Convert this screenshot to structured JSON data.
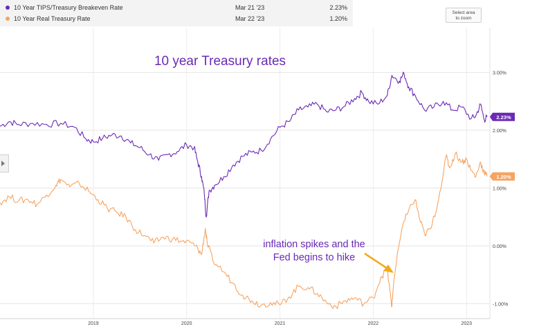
{
  "legend": [
    {
      "name": "10 Year TIPS/Treasury Breakeven Rate",
      "date": "Mar 21 '23",
      "value": "2.23%",
      "color": "#6a2ab5"
    },
    {
      "name": "10 Year Real Treasury Rate",
      "date": "Mar 22 '23",
      "value": "1.20%",
      "color": "#f5a462"
    }
  ],
  "zoom_button": {
    "line1": "Select area",
    "line2": "to zoom"
  },
  "side_tab": {
    "icon": "caret-right-icon"
  },
  "chart_data": {
    "type": "line",
    "title": "10 year Treasury rates",
    "ylim": [
      -1.15,
      3.4
    ],
    "xlim": [
      2018.0,
      2023.25
    ],
    "y_ticks": [
      {
        "value": 3,
        "label": "3.00%"
      },
      {
        "value": 2,
        "label": "2.00%"
      },
      {
        "value": 1,
        "label": "1.00%"
      },
      {
        "value": 0,
        "label": "0.00%"
      },
      {
        "value": -1,
        "label": "-1.00%"
      }
    ],
    "x_ticks": [
      {
        "value": 2019,
        "label": "2019"
      },
      {
        "value": 2020,
        "label": "2020"
      },
      {
        "value": 2021,
        "label": "2021"
      },
      {
        "value": 2022,
        "label": "2022"
      },
      {
        "value": 2023,
        "label": "2023"
      }
    ],
    "grid": true,
    "series": [
      {
        "name": "10 Year TIPS/Treasury Breakeven Rate",
        "color": "#6a2ab5",
        "end_label": "2.23%",
        "points": [
          [
            2018.0,
            2.07
          ],
          [
            2018.1,
            2.15
          ],
          [
            2018.2,
            2.1
          ],
          [
            2018.35,
            2.12
          ],
          [
            2018.5,
            2.1
          ],
          [
            2018.65,
            2.12
          ],
          [
            2018.8,
            2.05
          ],
          [
            2018.92,
            1.85
          ],
          [
            2019.0,
            1.8
          ],
          [
            2019.1,
            1.86
          ],
          [
            2019.2,
            1.92
          ],
          [
            2019.3,
            1.9
          ],
          [
            2019.4,
            1.78
          ],
          [
            2019.5,
            1.7
          ],
          [
            2019.6,
            1.58
          ],
          [
            2019.7,
            1.48
          ],
          [
            2019.8,
            1.58
          ],
          [
            2019.9,
            1.63
          ],
          [
            2020.0,
            1.75
          ],
          [
            2020.08,
            1.7
          ],
          [
            2020.12,
            1.45
          ],
          [
            2020.16,
            1.2
          ],
          [
            2020.19,
            0.9
          ],
          [
            2020.21,
            0.5
          ],
          [
            2020.24,
            0.95
          ],
          [
            2020.3,
            1.05
          ],
          [
            2020.4,
            1.2
          ],
          [
            2020.5,
            1.4
          ],
          [
            2020.6,
            1.55
          ],
          [
            2020.7,
            1.62
          ],
          [
            2020.8,
            1.65
          ],
          [
            2020.9,
            1.85
          ],
          [
            2021.0,
            2.05
          ],
          [
            2021.1,
            2.15
          ],
          [
            2021.2,
            2.35
          ],
          [
            2021.3,
            2.4
          ],
          [
            2021.4,
            2.45
          ],
          [
            2021.5,
            2.32
          ],
          [
            2021.6,
            2.35
          ],
          [
            2021.7,
            2.42
          ],
          [
            2021.8,
            2.55
          ],
          [
            2021.88,
            2.65
          ],
          [
            2021.95,
            2.5
          ],
          [
            2022.05,
            2.45
          ],
          [
            2022.15,
            2.6
          ],
          [
            2022.2,
            2.95
          ],
          [
            2022.28,
            2.85
          ],
          [
            2022.33,
            2.98
          ],
          [
            2022.38,
            2.75
          ],
          [
            2022.45,
            2.6
          ],
          [
            2022.55,
            2.35
          ],
          [
            2022.65,
            2.4
          ],
          [
            2022.75,
            2.5
          ],
          [
            2022.85,
            2.35
          ],
          [
            2022.95,
            2.4
          ],
          [
            2023.05,
            2.2
          ],
          [
            2023.1,
            2.25
          ],
          [
            2023.15,
            2.45
          ],
          [
            2023.19,
            2.18
          ],
          [
            2023.22,
            2.23
          ]
        ]
      },
      {
        "name": "10 Year Real Treasury Rate",
        "color": "#f5a462",
        "end_label": "1.20%",
        "points": [
          [
            2018.0,
            0.75
          ],
          [
            2018.1,
            0.85
          ],
          [
            2018.2,
            0.78
          ],
          [
            2018.3,
            0.8
          ],
          [
            2018.4,
            0.72
          ],
          [
            2018.5,
            0.88
          ],
          [
            2018.6,
            1.05
          ],
          [
            2018.65,
            1.15
          ],
          [
            2018.75,
            1.02
          ],
          [
            2018.85,
            1.08
          ],
          [
            2018.95,
            0.95
          ],
          [
            2019.05,
            0.8
          ],
          [
            2019.15,
            0.65
          ],
          [
            2019.25,
            0.58
          ],
          [
            2019.35,
            0.5
          ],
          [
            2019.45,
            0.28
          ],
          [
            2019.55,
            0.18
          ],
          [
            2019.65,
            0.05
          ],
          [
            2019.75,
            0.15
          ],
          [
            2019.85,
            0.12
          ],
          [
            2019.95,
            0.08
          ],
          [
            2020.05,
            0.05
          ],
          [
            2020.12,
            -0.05
          ],
          [
            2020.16,
            -0.15
          ],
          [
            2020.2,
            0.3
          ],
          [
            2020.22,
            0.05
          ],
          [
            2020.28,
            -0.25
          ],
          [
            2020.4,
            -0.45
          ],
          [
            2020.5,
            -0.65
          ],
          [
            2020.6,
            -0.85
          ],
          [
            2020.7,
            -0.95
          ],
          [
            2020.8,
            -1.02
          ],
          [
            2020.9,
            -0.98
          ],
          [
            2021.0,
            -1.02
          ],
          [
            2021.1,
            -0.88
          ],
          [
            2021.2,
            -0.7
          ],
          [
            2021.3,
            -0.72
          ],
          [
            2021.4,
            -0.82
          ],
          [
            2021.5,
            -0.98
          ],
          [
            2021.6,
            -1.05
          ],
          [
            2021.7,
            -0.95
          ],
          [
            2021.8,
            -0.9
          ],
          [
            2021.9,
            -1.0
          ],
          [
            2022.0,
            -0.9
          ],
          [
            2022.08,
            -0.55
          ],
          [
            2022.15,
            -0.4
          ],
          [
            2022.18,
            -0.8
          ],
          [
            2022.2,
            -1.05
          ],
          [
            2022.22,
            -0.6
          ],
          [
            2022.28,
            0.05
          ],
          [
            2022.35,
            0.55
          ],
          [
            2022.45,
            0.8
          ],
          [
            2022.5,
            0.45
          ],
          [
            2022.55,
            0.2
          ],
          [
            2022.62,
            0.3
          ],
          [
            2022.7,
            0.8
          ],
          [
            2022.78,
            1.55
          ],
          [
            2022.82,
            1.35
          ],
          [
            2022.88,
            1.6
          ],
          [
            2022.95,
            1.45
          ],
          [
            2023.0,
            1.5
          ],
          [
            2023.05,
            1.3
          ],
          [
            2023.1,
            1.2
          ],
          [
            2023.15,
            1.45
          ],
          [
            2023.18,
            1.3
          ],
          [
            2023.22,
            1.2
          ]
        ]
      }
    ],
    "annotations": [
      {
        "text_lines": [
          "inflation spikes and the",
          "Fed begins to hike"
        ],
        "color": "#6a2ab5"
      }
    ]
  }
}
